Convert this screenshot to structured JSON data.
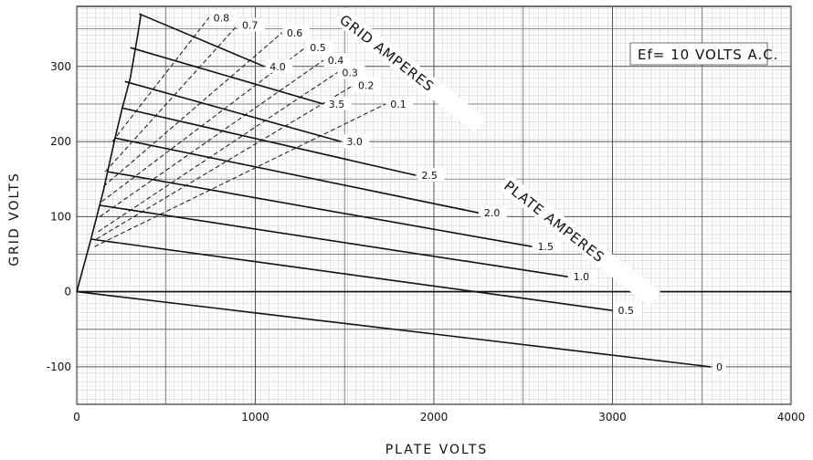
{
  "chart_data": {
    "type": "line",
    "title": "",
    "xlabel": "PLATE VOLTS",
    "ylabel": "GRID VOLTS",
    "xlim": [
      0,
      4000
    ],
    "ylim": [
      -150,
      380
    ],
    "xticks": [
      "0",
      "1000",
      "2000",
      "3000",
      "4000"
    ],
    "yticks": [
      "-100",
      "0",
      "100",
      "200",
      "300"
    ],
    "xtick_values": [
      0,
      1000,
      2000,
      3000,
      4000
    ],
    "ytick_values": [
      -100,
      0,
      100,
      200,
      300
    ],
    "grid": true,
    "annotation": "Ef= 10 VOLTS A.C.",
    "families": [
      {
        "name": "PLATE AMPERES",
        "style": "solid"
      },
      {
        "name": "GRID AMPERES",
        "style": "dashed"
      }
    ],
    "envelope": {
      "x": [
        0,
        80,
        150,
        210,
        250,
        300,
        340,
        360
      ],
      "y": [
        0,
        70,
        135,
        200,
        240,
        285,
        340,
        370
      ]
    },
    "plate_curves": [
      {
        "label": "0",
        "x": [
          0,
          3550
        ],
        "y": [
          0,
          -100
        ]
      },
      {
        "label": "0.5",
        "x": [
          80,
          3000
        ],
        "y": [
          70,
          -25
        ]
      },
      {
        "label": "1.0",
        "x": [
          130,
          2750
        ],
        "y": [
          115,
          20
        ]
      },
      {
        "label": "1.5",
        "x": [
          170,
          2550
        ],
        "y": [
          160,
          60
        ]
      },
      {
        "label": "2.0",
        "x": [
          210,
          2250
        ],
        "y": [
          205,
          105
        ]
      },
      {
        "label": "2.5",
        "x": [
          250,
          1900
        ],
        "y": [
          245,
          155
        ]
      },
      {
        "label": "3.0",
        "x": [
          270,
          1480
        ],
        "y": [
          280,
          200
        ]
      },
      {
        "label": "3.5",
        "x": [
          300,
          1380
        ],
        "y": [
          325,
          250
        ]
      },
      {
        "label": "4.0",
        "x": [
          350,
          1050
        ],
        "y": [
          370,
          300
        ]
      }
    ],
    "grid_curves": [
      {
        "label": "0.8",
        "x": [
          200,
          740
        ],
        "y": [
          200,
          365
        ]
      },
      {
        "label": "0.7",
        "x": [
          160,
          900
        ],
        "y": [
          160,
          355
        ]
      },
      {
        "label": "0.6",
        "x": [
          150,
          1150
        ],
        "y": [
          140,
          345
        ]
      },
      {
        "label": "0.5",
        "x": [
          140,
          1280
        ],
        "y": [
          120,
          325
        ]
      },
      {
        "label": "0.4",
        "x": [
          130,
          1380
        ],
        "y": [
          100,
          308
        ]
      },
      {
        "label": "0.3",
        "x": [
          120,
          1460
        ],
        "y": [
          80,
          292
        ]
      },
      {
        "label": "0.2",
        "x": [
          110,
          1550
        ],
        "y": [
          70,
          275
        ]
      },
      {
        "label": "0.1",
        "x": [
          100,
          1730
        ],
        "y": [
          60,
          250
        ]
      }
    ]
  }
}
